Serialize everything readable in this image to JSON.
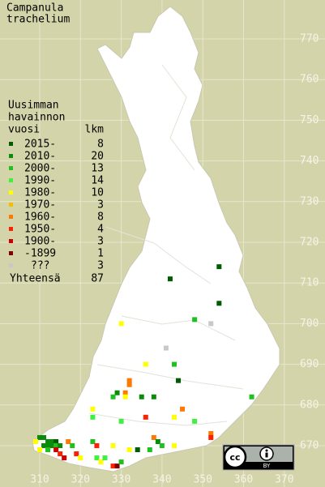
{
  "title": [
    "Campanula",
    "trachelium"
  ],
  "legend": {
    "heading": [
      "Uusimman",
      "havainnon",
      "vuosi"
    ],
    "count_heading": "lkm",
    "entries": [
      {
        "label": "2015-",
        "count": 8,
        "color": "#005c00"
      },
      {
        "label": "2010-",
        "count": 20,
        "color": "#0a8c0a"
      },
      {
        "label": "2000-",
        "count": 13,
        "color": "#20c020"
      },
      {
        "label": "1990-",
        "count": 14,
        "color": "#40f040"
      },
      {
        "label": "1980-",
        "count": 10,
        "color": "#ffff00"
      },
      {
        "label": "1970-",
        "count": 3,
        "color": "#f0c000"
      },
      {
        "label": "1960-",
        "count": 8,
        "color": "#ff7800"
      },
      {
        "label": "1950-",
        "count": 4,
        "color": "#ff2000"
      },
      {
        "label": "1900-",
        "count": 3,
        "color": "#c80000"
      },
      {
        "label": "-1899",
        "count": 1,
        "color": "#800000"
      },
      {
        "label": "???",
        "count": 3,
        "color": "#c8c8c8"
      }
    ],
    "total": {
      "label": "Yhteensä",
      "value": 87
    }
  },
  "yticks": [
    770,
    760,
    750,
    740,
    730,
    720,
    710,
    700,
    690,
    680,
    670
  ],
  "xticks": [
    310,
    320,
    330,
    340,
    350,
    360,
    370
  ],
  "points": [
    {
      "x": 354,
      "y": 714,
      "period": 0
    },
    {
      "x": 342,
      "y": 711,
      "period": 0
    },
    {
      "x": 354,
      "y": 705,
      "period": 0
    },
    {
      "x": 348,
      "y": 701,
      "period": 2
    },
    {
      "x": 352,
      "y": 700,
      "period": 10
    },
    {
      "x": 330,
      "y": 700,
      "period": 4
    },
    {
      "x": 341,
      "y": 694,
      "period": 10
    },
    {
      "x": 336,
      "y": 690,
      "period": 4
    },
    {
      "x": 343,
      "y": 690,
      "period": 2
    },
    {
      "x": 344,
      "y": 686,
      "period": 0
    },
    {
      "x": 332,
      "y": 686,
      "period": 6
    },
    {
      "x": 332,
      "y": 685,
      "period": 6
    },
    {
      "x": 329,
      "y": 683,
      "period": 1
    },
    {
      "x": 331,
      "y": 683,
      "period": 6
    },
    {
      "x": 331,
      "y": 682,
      "period": 4
    },
    {
      "x": 328,
      "y": 682,
      "period": 2
    },
    {
      "x": 335,
      "y": 682,
      "period": 1
    },
    {
      "x": 338,
      "y": 682,
      "period": 1
    },
    {
      "x": 362,
      "y": 682,
      "period": 2
    },
    {
      "x": 323,
      "y": 679,
      "period": 4
    },
    {
      "x": 345,
      "y": 679,
      "period": 6
    },
    {
      "x": 336,
      "y": 677,
      "period": 7
    },
    {
      "x": 343,
      "y": 677,
      "period": 4
    },
    {
      "x": 348,
      "y": 676,
      "period": 3
    },
    {
      "x": 323,
      "y": 677,
      "period": 3
    },
    {
      "x": 330,
      "y": 676,
      "period": 3
    },
    {
      "x": 352,
      "y": 673,
      "period": 6
    },
    {
      "x": 352,
      "y": 672,
      "period": 7
    },
    {
      "x": 310,
      "y": 672,
      "period": 1
    },
    {
      "x": 311,
      "y": 672,
      "period": 1
    },
    {
      "x": 312,
      "y": 671,
      "period": 1
    },
    {
      "x": 313,
      "y": 671,
      "period": 1
    },
    {
      "x": 314,
      "y": 671,
      "period": 0
    },
    {
      "x": 311,
      "y": 670,
      "period": 1
    },
    {
      "x": 312,
      "y": 670,
      "period": 1
    },
    {
      "x": 313,
      "y": 670,
      "period": 1
    },
    {
      "x": 314,
      "y": 670,
      "period": 2
    },
    {
      "x": 315,
      "y": 670,
      "period": 1
    },
    {
      "x": 310,
      "y": 669,
      "period": 4
    },
    {
      "x": 312,
      "y": 669,
      "period": 2
    },
    {
      "x": 314,
      "y": 669,
      "period": 8
    },
    {
      "x": 309,
      "y": 671,
      "period": 4
    },
    {
      "x": 315,
      "y": 668,
      "period": 7
    },
    {
      "x": 316,
      "y": 667,
      "period": 8
    },
    {
      "x": 317,
      "y": 671,
      "period": 6
    },
    {
      "x": 318,
      "y": 670,
      "period": 2
    },
    {
      "x": 319,
      "y": 668,
      "period": 7
    },
    {
      "x": 320,
      "y": 667,
      "period": 4
    },
    {
      "x": 323,
      "y": 671,
      "period": 2
    },
    {
      "x": 324,
      "y": 670,
      "period": 7
    },
    {
      "x": 324,
      "y": 667,
      "period": 3
    },
    {
      "x": 325,
      "y": 666,
      "period": 4
    },
    {
      "x": 328,
      "y": 665,
      "period": 7
    },
    {
      "x": 329,
      "y": 665,
      "period": 9
    },
    {
      "x": 326,
      "y": 667,
      "period": 3
    },
    {
      "x": 332,
      "y": 669,
      "period": 4
    },
    {
      "x": 334,
      "y": 669,
      "period": 0
    },
    {
      "x": 337,
      "y": 669,
      "period": 2
    },
    {
      "x": 338,
      "y": 672,
      "period": 6
    },
    {
      "x": 339,
      "y": 671,
      "period": 1
    },
    {
      "x": 340,
      "y": 670,
      "period": 2
    },
    {
      "x": 343,
      "y": 670,
      "period": 4
    },
    {
      "x": 328,
      "y": 670,
      "period": 4
    },
    {
      "x": 330,
      "y": 666,
      "period": 2
    }
  ],
  "license": {
    "badge": "cc",
    "label": "BY"
  }
}
